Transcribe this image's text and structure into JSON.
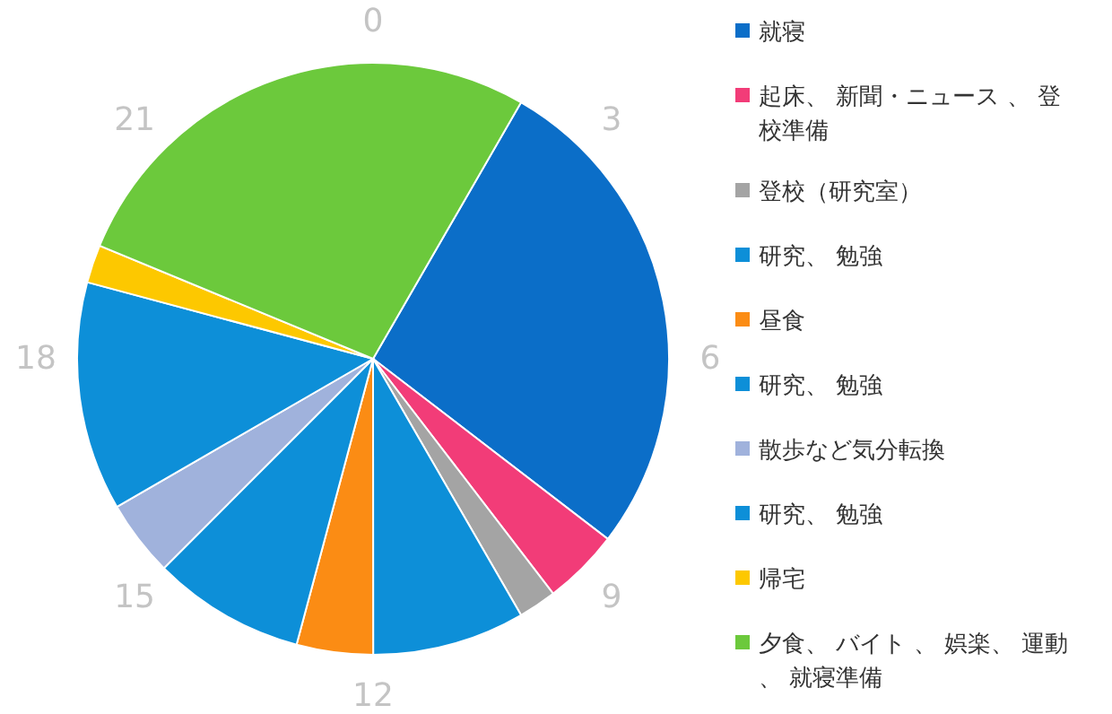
{
  "chart_data": {
    "type": "pie",
    "categories": [
      "就寝",
      "起床、 新聞・ニュース 、 登校準備",
      "登校（研究室）",
      "研究、 勉強",
      "昼食",
      "研究、 勉強",
      "散歩など気分転換",
      "研究、 勉強",
      "帰宅",
      "夕食、 バイト 、 娯楽、 運動、 就寝準備"
    ],
    "values": [
      27.08,
      4.17,
      2.08,
      8.33,
      4.17,
      8.33,
      4.17,
      12.5,
      2.08,
      27.09
    ],
    "colors": [
      "#0b6ec8",
      "#f23c78",
      "#a4a4a4",
      "#0d8fd8",
      "#fb8c14",
      "#0d8fd8",
      "#a0b2dc",
      "#0d8fd8",
      "#fdc800",
      "#6cc93c"
    ],
    "annotations": [
      "0",
      "3",
      "6",
      "9",
      "12",
      "15",
      "18",
      "21"
    ],
    "legend": "right"
  }
}
